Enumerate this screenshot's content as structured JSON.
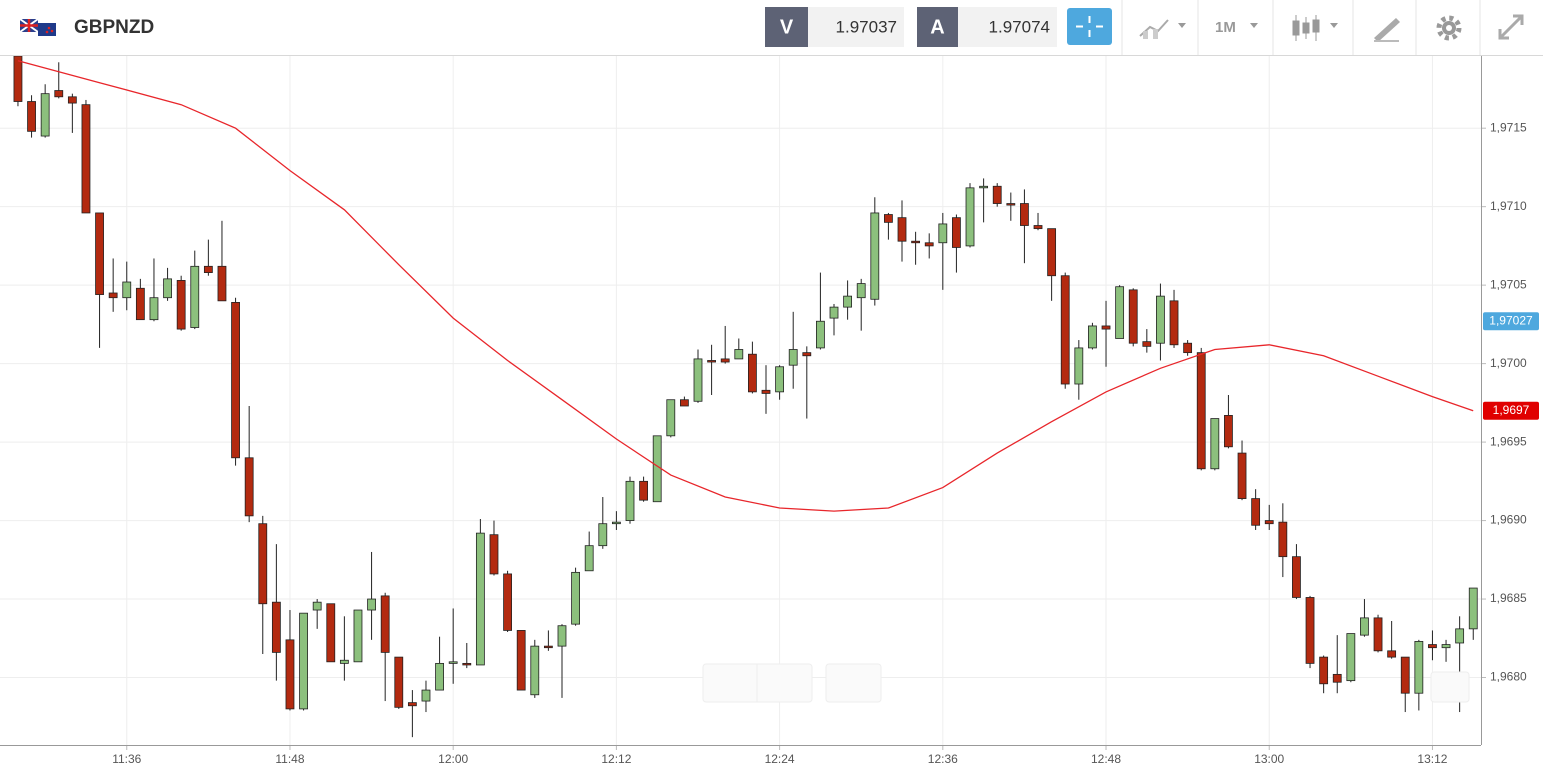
{
  "toolbar": {
    "symbol": "GBPNZD",
    "bid_label": "V",
    "bid": 1.97037,
    "ask_label": "A",
    "ask": 1.97074,
    "timeframe": "1M"
  },
  "chart_data": {
    "type": "candlestick",
    "x": [
      688,
      689,
      690,
      691,
      692,
      693,
      694,
      695,
      696,
      697,
      698,
      699,
      700,
      701,
      702,
      703,
      704,
      705,
      706,
      707,
      708,
      709,
      710,
      711,
      712,
      713,
      714,
      715,
      716,
      717,
      718,
      719,
      720,
      721,
      722,
      723,
      724,
      725,
      726,
      727,
      728,
      729,
      730,
      731,
      732,
      733,
      734,
      735,
      736,
      737,
      738,
      739,
      740,
      741,
      742,
      743,
      744,
      745,
      746,
      747,
      748,
      749,
      750,
      751,
      752,
      753,
      754,
      755,
      756,
      757,
      758,
      759,
      760,
      761,
      762,
      763,
      764,
      765,
      766,
      767,
      768,
      769,
      770,
      771,
      772,
      773,
      774,
      775,
      776,
      777,
      778,
      779,
      780,
      781,
      782,
      783,
      784,
      785,
      786,
      787,
      788,
      789,
      790,
      791,
      792,
      793,
      794,
      795
    ],
    "open": [
      1.97196,
      1.97167,
      1.97145,
      1.97174,
      1.9717,
      1.97165,
      1.97096,
      1.97045,
      1.97042,
      1.97048,
      1.97028,
      1.97042,
      1.97053,
      1.97023,
      1.97062,
      1.97062,
      1.97039,
      1.9694,
      1.96898,
      1.96848,
      1.96824,
      1.9678,
      1.96843,
      1.96847,
      1.96809,
      1.9681,
      1.96843,
      1.96852,
      1.96813,
      1.96784,
      1.96785,
      1.96792,
      1.96809,
      1.96809,
      1.96808,
      1.96891,
      1.96866,
      1.9683,
      1.96789,
      1.9682,
      1.9682,
      1.96834,
      1.96868,
      1.96884,
      1.96898,
      1.969,
      1.96925,
      1.96912,
      1.96954,
      1.96977,
      1.96976,
      1.97002,
      1.97003,
      1.97003,
      1.97006,
      1.96983,
      1.96982,
      1.96999,
      1.97007,
      1.9701,
      1.97029,
      1.97036,
      1.97042,
      1.97041,
      1.97095,
      1.97093,
      1.97078,
      1.97077,
      1.97077,
      1.97093,
      1.97075,
      1.97112,
      1.97113,
      1.97102,
      1.97102,
      1.97088,
      1.97086,
      1.97056,
      1.96987,
      1.9701,
      1.97024,
      1.97016,
      1.97047,
      1.97014,
      1.97013,
      1.9704,
      1.97013,
      1.97007,
      1.96933,
      1.96967,
      1.96943,
      1.96914,
      1.969,
      1.96899,
      1.96877,
      1.96851,
      1.96813,
      1.96802,
      1.96798,
      1.96827,
      1.96838,
      1.96817,
      1.96813,
      1.9679,
      1.96821,
      1.96819,
      1.96822,
      1.96831
    ],
    "high": [
      1.972,
      1.97171,
      1.97178,
      1.97192,
      1.97172,
      1.97168,
      1.97096,
      1.97067,
      1.97065,
      1.97054,
      1.97067,
      1.97061,
      1.97056,
      1.97072,
      1.97079,
      1.97091,
      1.97042,
      1.96973,
      1.96903,
      1.96885,
      1.96843,
      1.96841,
      1.9685,
      1.96847,
      1.96839,
      1.96843,
      1.9688,
      1.96854,
      1.96813,
      1.96792,
      1.96798,
      1.96826,
      1.96844,
      1.96822,
      1.96901,
      1.969,
      1.96868,
      1.9683,
      1.96824,
      1.9683,
      1.96834,
      1.9687,
      1.96893,
      1.96915,
      1.96906,
      1.96928,
      1.96928,
      1.96954,
      1.96977,
      1.96979,
      1.97009,
      1.97012,
      1.97024,
      1.97016,
      1.97014,
      1.96999,
      1.96999,
      1.97033,
      1.97011,
      1.97058,
      1.97038,
      1.97053,
      1.97054,
      1.97106,
      1.97096,
      1.97104,
      1.97084,
      1.97083,
      1.97096,
      1.97095,
      1.97115,
      1.97118,
      1.97115,
      1.97109,
      1.97111,
      1.97096,
      1.97086,
      1.97058,
      1.97015,
      1.97026,
      1.9704,
      1.9705,
      1.97048,
      1.97022,
      1.97051,
      1.97047,
      1.97015,
      1.9701,
      1.96965,
      1.9698,
      1.96951,
      1.9692,
      1.9691,
      1.96911,
      1.96885,
      1.96852,
      1.96814,
      1.96827,
      1.96828,
      1.9685,
      1.9684,
      1.96836,
      1.96813,
      1.96824,
      1.9683,
      1.96824,
      1.96839,
      1.96857
    ],
    "low": [
      1.97164,
      1.97144,
      1.97144,
      1.97169,
      1.97147,
      1.97096,
      1.9701,
      1.97033,
      1.97034,
      1.97028,
      1.97027,
      1.9704,
      1.97021,
      1.97022,
      1.97056,
      1.9704,
      1.96935,
      1.96899,
      1.96815,
      1.96798,
      1.96779,
      1.96779,
      1.96831,
      1.9681,
      1.96798,
      1.9681,
      1.96824,
      1.96785,
      1.9678,
      1.96762,
      1.96778,
      1.96792,
      1.96796,
      1.96806,
      1.96808,
      1.96865,
      1.96829,
      1.96792,
      1.96787,
      1.96817,
      1.96787,
      1.96833,
      1.96868,
      1.96882,
      1.96894,
      1.96898,
      1.96912,
      1.96912,
      1.96953,
      1.96973,
      1.96975,
      1.9698,
      1.97,
      1.97003,
      1.96981,
      1.96968,
      1.96977,
      1.96984,
      1.96965,
      1.97009,
      1.97018,
      1.97028,
      1.97021,
      1.97037,
      1.97079,
      1.97065,
      1.97063,
      1.97067,
      1.97047,
      1.97058,
      1.97074,
      1.9709,
      1.971,
      1.97091,
      1.97064,
      1.97085,
      1.9704,
      1.96984,
      1.96977,
      1.97009,
      1.96998,
      1.97016,
      1.97011,
      1.97007,
      1.97002,
      1.9701,
      1.97005,
      1.96932,
      1.96932,
      1.96946,
      1.96913,
      1.96894,
      1.96894,
      1.96864,
      1.9685,
      1.96806,
      1.9679,
      1.9679,
      1.96797,
      1.96826,
      1.96816,
      1.96812,
      1.96778,
      1.96779,
      1.96811,
      1.9681,
      1.96778,
      1.96824
    ],
    "close": [
      1.97167,
      1.97148,
      1.97172,
      1.9717,
      1.97166,
      1.97096,
      1.97044,
      1.97042,
      1.97052,
      1.97028,
      1.97042,
      1.97054,
      1.97022,
      1.97062,
      1.97058,
      1.9704,
      1.9694,
      1.96903,
      1.96847,
      1.96816,
      1.9678,
      1.96841,
      1.96848,
      1.9681,
      1.96811,
      1.96843,
      1.9685,
      1.96816,
      1.96781,
      1.96782,
      1.96792,
      1.96809,
      1.9681,
      1.96808,
      1.96892,
      1.96866,
      1.9683,
      1.96792,
      1.9682,
      1.96819,
      1.96833,
      1.96867,
      1.96884,
      1.96898,
      1.96899,
      1.96925,
      1.96913,
      1.96954,
      1.96977,
      1.96973,
      1.97003,
      1.97001,
      1.97001,
      1.97009,
      1.96982,
      1.96981,
      1.96998,
      1.97009,
      1.97005,
      1.97027,
      1.97036,
      1.97043,
      1.97051,
      1.97096,
      1.9709,
      1.97078,
      1.97077,
      1.97075,
      1.97089,
      1.97074,
      1.97112,
      1.97113,
      1.97102,
      1.97101,
      1.97088,
      1.97086,
      1.97056,
      1.96987,
      1.9701,
      1.97024,
      1.97022,
      1.97049,
      1.97013,
      1.97011,
      1.97043,
      1.97012,
      1.97007,
      1.96933,
      1.96965,
      1.96947,
      1.96914,
      1.96897,
      1.96898,
      1.96877,
      1.96851,
      1.96809,
      1.96796,
      1.96797,
      1.96828,
      1.96838,
      1.96817,
      1.96813,
      1.9679,
      1.96823,
      1.96819,
      1.96821,
      1.96831,
      1.96857
    ],
    "up_color": "#8cc07d",
    "down_color": "#b32a10",
    "ma": {
      "color": "#e8262b",
      "x": [
        688,
        694,
        700,
        704,
        708,
        712,
        716,
        720,
        724,
        728,
        732,
        736,
        740,
        744,
        748,
        752,
        756,
        760,
        764,
        768,
        772,
        776,
        780,
        784,
        788,
        792,
        795
      ],
      "values": [
        1.97193,
        1.97179,
        1.97165,
        1.9715,
        1.97123,
        1.97098,
        1.97063,
        1.97029,
        1.97002,
        1.96977,
        1.96952,
        1.96929,
        1.96915,
        1.96908,
        1.96906,
        1.96908,
        1.96921,
        1.96943,
        1.96963,
        1.96982,
        1.96997,
        1.97009,
        1.97012,
        1.97005,
        1.96992,
        1.96979,
        1.9697
      ]
    },
    "price_labels": [
      {
        "value": 1.97027,
        "label": "1,97027",
        "color": "#4ea8de"
      },
      {
        "value": 1.9697,
        "label": "1,9697",
        "color": "#e00000"
      }
    ],
    "xlim": [
      686.68,
      795.57
    ],
    "ylim": [
      1.96757,
      1.97196
    ],
    "xticks": [
      {
        "value": 696,
        "label": "11:36"
      },
      {
        "value": 708,
        "label": "11:48"
      },
      {
        "value": 720,
        "label": "12:00"
      },
      {
        "value": 732,
        "label": "12:12"
      },
      {
        "value": 744,
        "label": "12:24"
      },
      {
        "value": 756,
        "label": "12:36"
      },
      {
        "value": 768,
        "label": "12:48"
      },
      {
        "value": 780,
        "label": "13:00"
      },
      {
        "value": 792,
        "label": "13:12"
      }
    ],
    "yticks": [
      {
        "value": 1.968,
        "label": "1,9680"
      },
      {
        "value": 1.9685,
        "label": "1,9685"
      },
      {
        "value": 1.969,
        "label": "1,9690"
      },
      {
        "value": 1.9695,
        "label": "1,9695"
      },
      {
        "value": 1.97,
        "label": "1,9700"
      },
      {
        "value": 1.9705,
        "label": "1,9705"
      },
      {
        "value": 1.971,
        "label": "1,9710"
      },
      {
        "value": 1.9715,
        "label": "1,9715"
      }
    ],
    "grid": true
  }
}
